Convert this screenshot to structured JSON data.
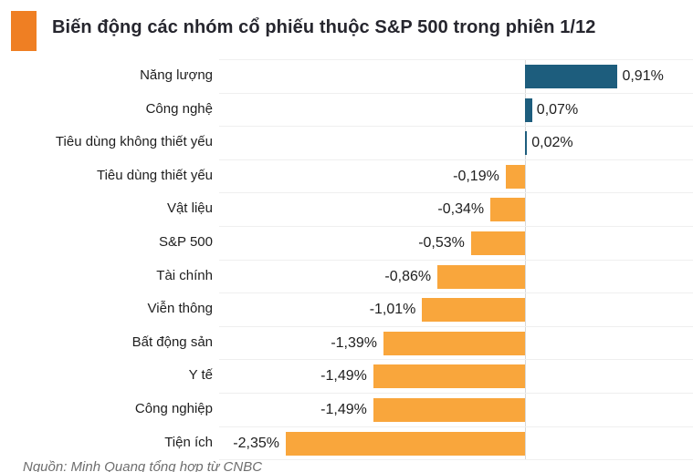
{
  "header": {
    "title": "Biến động các nhóm cổ phiếu thuộc S&P 500 trong phiên 1/12",
    "accent_color": "#EF7F23"
  },
  "chart_data": {
    "type": "bar",
    "orientation": "horizontal",
    "title": "Biến động các nhóm cổ phiếu thuộc S&P 500 trong phiên 1/12",
    "categories": [
      "Năng lượng",
      "Công nghệ",
      "Tiêu dùng không thiết yếu",
      "Tiêu dùng thiết yếu",
      "Vật liệu",
      "S&P 500",
      "Tài chính",
      "Viễn thông",
      "Bất động sản",
      "Y tế",
      "Công nghiệp",
      "Tiện ích"
    ],
    "values": [
      0.91,
      0.07,
      0.02,
      -0.19,
      -0.34,
      -0.53,
      -0.86,
      -1.01,
      -1.39,
      -1.49,
      -1.49,
      -2.35
    ],
    "value_labels": [
      "0,91%",
      "0,07%",
      "0,02%",
      "-0,19%",
      "-0,34%",
      "-0,53%",
      "-0,86%",
      "-1,01%",
      "-1,39%",
      "-1,49%",
      "-1,49%",
      "-2,35%"
    ],
    "unit": "%",
    "positive_color": "#1D5D7D",
    "negative_color": "#F9A63C",
    "xlim": [
      -3.0,
      1.65
    ],
    "grid": "horizontal row separators only",
    "gridline_color": "#EFEFEF",
    "zero_line": true,
    "zero_line_color": "#D9D9D9",
    "legend": "none",
    "data_labels": "outside bar ends, comma decimal separator"
  },
  "footer": {
    "source": "Nguồn: Minh Quang tổng hợp từ CNBC"
  }
}
